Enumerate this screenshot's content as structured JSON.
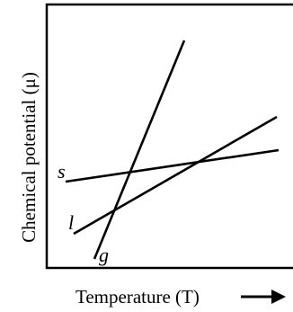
{
  "figure": {
    "ylabel": "Chemical potential (μ)",
    "xlabel": "Temperature (T)",
    "arrow_icon": "right-arrow-icon",
    "lines": [
      {
        "label": "s",
        "name": "solid-line"
      },
      {
        "label": "l",
        "name": "liquid-line"
      },
      {
        "label": "g",
        "name": "gas-line"
      }
    ],
    "colors": {
      "ink": "#000000",
      "background": "#ffffff"
    }
  }
}
